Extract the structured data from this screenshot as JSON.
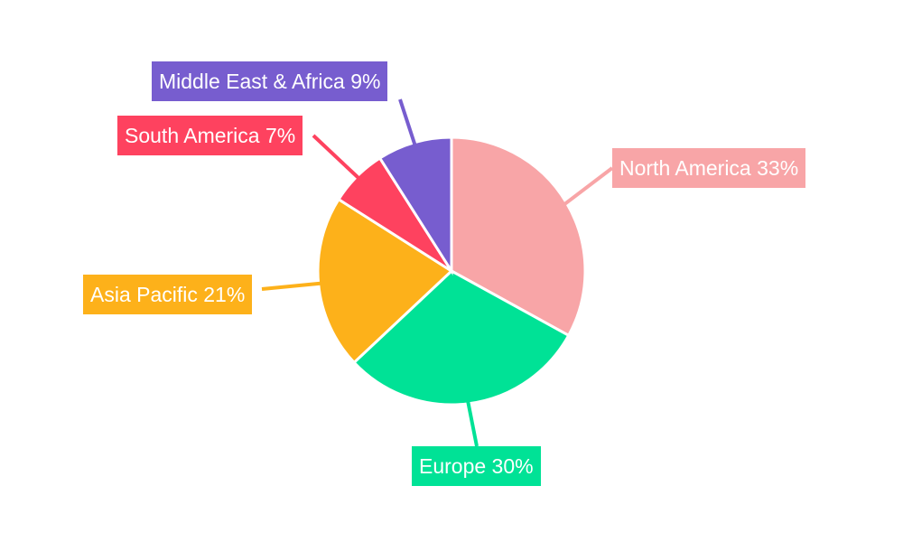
{
  "chart_data": {
    "type": "pie",
    "title": "",
    "start_angle_deg": 0,
    "direction": "clockwise",
    "slices": [
      {
        "label": "North America",
        "value": 33,
        "color": "#f8a5a7",
        "text": "North America 33%"
      },
      {
        "label": "Europe",
        "value": 30,
        "color": "#00e296",
        "text": "Europe 30%"
      },
      {
        "label": "Asia Pacific",
        "value": 21,
        "color": "#fdb11a",
        "text": "Asia Pacific 21%"
      },
      {
        "label": "South America",
        "value": 7,
        "color": "#fe425f",
        "text": "South America 7%"
      },
      {
        "label": "Middle East & Africa",
        "value": 9,
        "color": "#775dcf",
        "text": "Middle East & Africa 9%"
      }
    ],
    "legend": "none",
    "data_labels": "outside-with-leader-lines"
  }
}
